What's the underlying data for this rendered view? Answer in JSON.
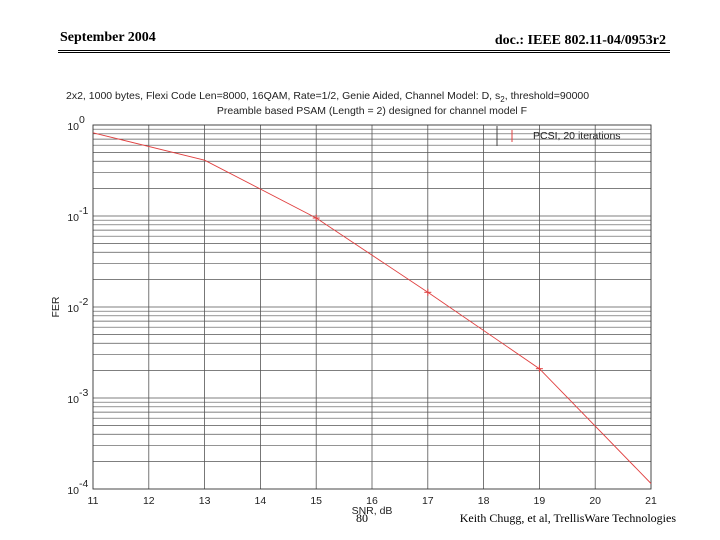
{
  "slide": {
    "date": "September 2004",
    "doc": "doc.: IEEE 802.11-04/0953r2",
    "page_number": "80",
    "credit": "Keith Chugg, et al, TrellisWare Technologies"
  },
  "colors": {
    "series": "#e04040",
    "grid": "#555555",
    "axis": "#333333",
    "legend_frame": "#444444"
  },
  "chart_data": {
    "type": "line",
    "title_lines": [
      "2x2, 1000 bytes, Flexi Code Len=8000, 16QAM, Rate=1/2, Genie Aided, Channel Model: D, s",
      "Preamble based PSAM (Length = 2) designed for channel model F"
    ],
    "title_line1_subscript": "2",
    "title_line1_tail": ", threshold=90000",
    "xlabel": "SNR, dB",
    "ylabel": "FER",
    "xlim": [
      11,
      21
    ],
    "ylim": [
      0.0001,
      1
    ],
    "yscale": "log",
    "grid": true,
    "legend_position": "top-right",
    "x_ticks": [
      11,
      12,
      13,
      14,
      15,
      16,
      17,
      18,
      19,
      20,
      21
    ],
    "y_ticks": [
      {
        "value": 1,
        "base": "10",
        "exp": "0"
      },
      {
        "value": 0.1,
        "base": "10",
        "exp": "-1"
      },
      {
        "value": 0.01,
        "base": "10",
        "exp": "-2"
      },
      {
        "value": 0.001,
        "base": "10",
        "exp": "-3"
      },
      {
        "value": 0.0001,
        "base": "10",
        "exp": "-4"
      }
    ],
    "series": [
      {
        "name": "PCSI, 20 iterations",
        "x": [
          11,
          13,
          15,
          17,
          19,
          21
        ],
        "y": [
          0.82,
          0.41,
          0.095,
          0.0145,
          0.0021,
          0.000115
        ],
        "markers_at": [
          15,
          17,
          19
        ]
      }
    ]
  }
}
